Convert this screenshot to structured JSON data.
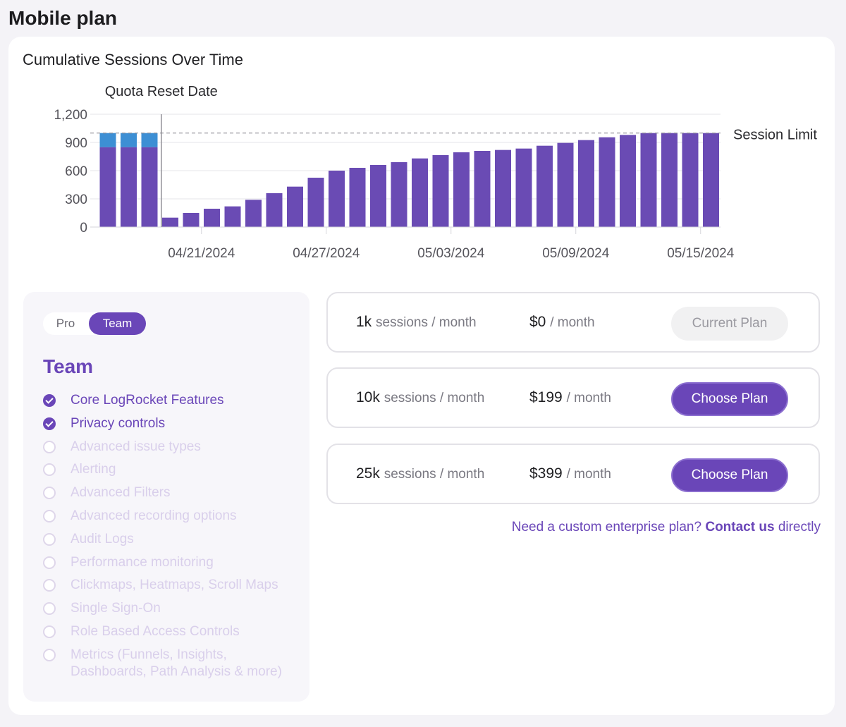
{
  "page": {
    "title": "Mobile plan"
  },
  "chart": {
    "title": "Cumulative Sessions Over Time"
  },
  "chart_data": {
    "type": "bar",
    "title": "Cumulative Sessions Over Time",
    "xlabel": "",
    "ylabel": "",
    "ylim": [
      0,
      1200
    ],
    "yticks": [
      "0",
      "300",
      "600",
      "900",
      "1,200"
    ],
    "xticks": [
      {
        "label": "04/21/2024",
        "index": 5
      },
      {
        "label": "04/27/2024",
        "index": 11
      },
      {
        "label": "05/03/2024",
        "index": 17
      },
      {
        "label": "05/09/2024",
        "index": 23
      },
      {
        "label": "05/15/2024",
        "index": 29
      }
    ],
    "series": [
      {
        "color": "#6a4bb4",
        "values": [
          850,
          850,
          850,
          100,
          150,
          195,
          220,
          290,
          360,
          430,
          525,
          600,
          630,
          660,
          690,
          730,
          765,
          795,
          810,
          820,
          835,
          865,
          895,
          925,
          955,
          980,
          1000,
          1000,
          1000,
          1000
        ]
      },
      {
        "color": "#3d8fd4",
        "values": [
          150,
          150,
          150,
          0,
          0,
          0,
          0,
          0,
          0,
          0,
          0,
          0,
          0,
          0,
          0,
          0,
          0,
          0,
          0,
          0,
          0,
          0,
          0,
          0,
          0,
          0,
          0,
          0,
          0,
          0
        ]
      }
    ],
    "session_limit": {
      "value": 1000,
      "label": "Session Limit"
    },
    "quota_reset": {
      "index": 3,
      "label": "Quota Reset Date"
    },
    "grid": true
  },
  "features_panel": {
    "toggle": {
      "pro": "Pro",
      "team": "Team",
      "selected": "Team"
    },
    "plan_name": "Team",
    "features": [
      {
        "label": "Core LogRocket Features",
        "included": true
      },
      {
        "label": "Privacy controls",
        "included": true
      },
      {
        "label": "Advanced issue types",
        "included": false
      },
      {
        "label": "Alerting",
        "included": false
      },
      {
        "label": "Advanced Filters",
        "included": false
      },
      {
        "label": "Advanced recording options",
        "included": false
      },
      {
        "label": "Audit Logs",
        "included": false
      },
      {
        "label": "Performance monitoring",
        "included": false
      },
      {
        "label": "Clickmaps, Heatmaps, Scroll Maps",
        "included": false
      },
      {
        "label": "Single Sign-On",
        "included": false
      },
      {
        "label": "Role Based Access Controls",
        "included": false
      },
      {
        "label": "Metrics (Funnels, Insights, Dashboards, Path Analysis & more)",
        "included": false
      }
    ]
  },
  "plans": [
    {
      "sessions": "1k",
      "sessions_unit": "sessions / month",
      "price": "$0",
      "price_unit": "/ month",
      "button": "Current Plan",
      "current": true
    },
    {
      "sessions": "10k",
      "sessions_unit": "sessions / month",
      "price": "$199",
      "price_unit": "/ month",
      "button": "Choose Plan",
      "current": false
    },
    {
      "sessions": "25k",
      "sessions_unit": "sessions / month",
      "price": "$399",
      "price_unit": "/ month",
      "button": "Choose Plan",
      "current": false
    }
  ],
  "enterprise": {
    "prefix": "Need a custom enterprise plan?",
    "link": "Contact us",
    "suffix": "directly"
  },
  "colors": {
    "accent": "#6a46b8",
    "bar_primary": "#6a4bb4",
    "bar_overage": "#3d8fd4"
  }
}
